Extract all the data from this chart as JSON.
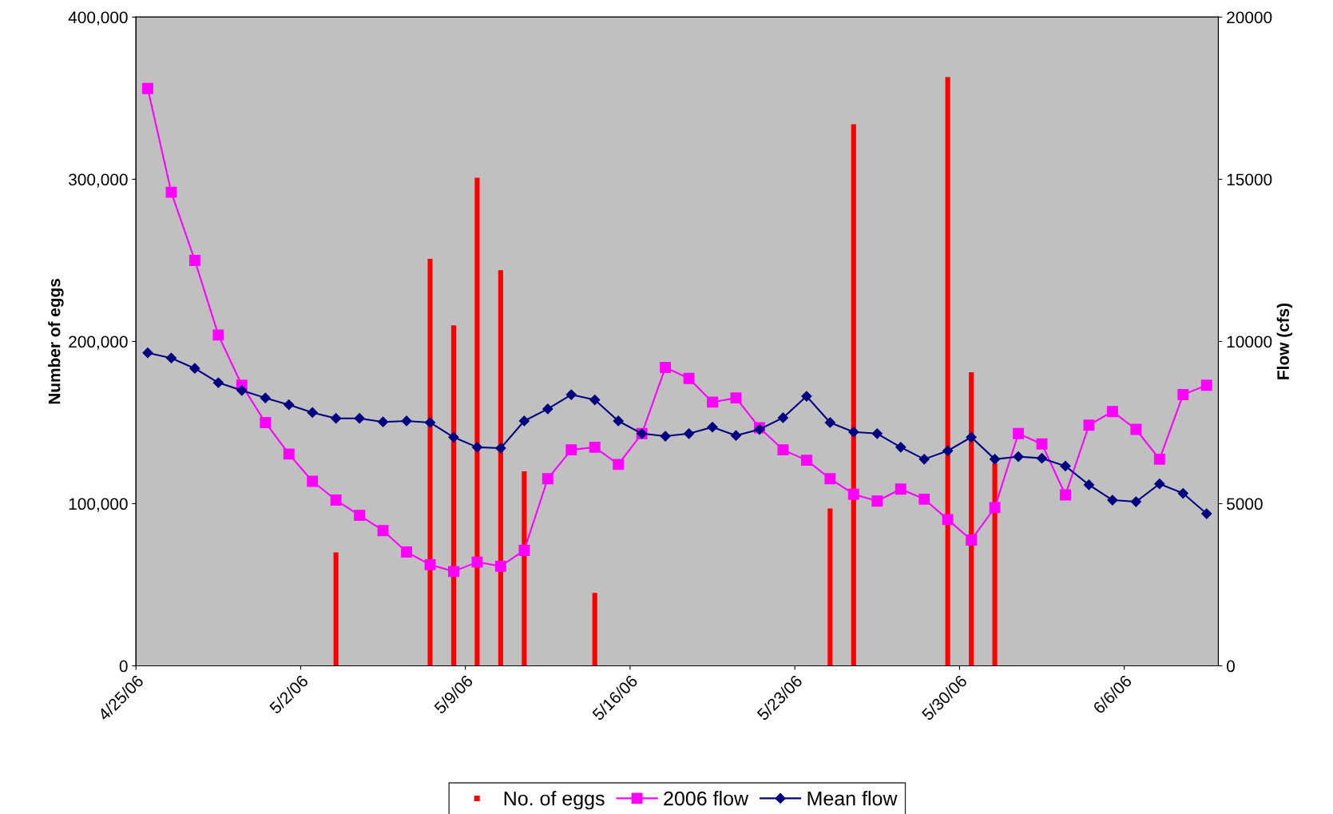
{
  "chart_data": {
    "type": "bar",
    "ylabel": "Number of eggs",
    "y2label": "Flow (cfs)",
    "x": [
      "2006-04-25T12:00",
      "2006-04-26T12:00",
      "2006-04-27T12:00",
      "2006-04-28T12:00",
      "2006-04-29T12:00",
      "2006-04-30T12:00",
      "2006-05-01T12:00",
      "2006-05-02T12:00",
      "2006-05-03T12:00",
      "2006-05-04T12:00",
      "2006-05-05T12:00",
      "2006-05-06T12:00",
      "2006-05-07T12:00",
      "2006-05-08T12:00",
      "2006-05-09T12:00",
      "2006-05-10T12:00",
      "2006-05-11T12:00",
      "2006-05-12T12:00",
      "2006-05-13T12:00",
      "2006-05-14T12:00",
      "2006-05-15T12:00",
      "2006-05-16T12:00",
      "2006-05-17T12:00",
      "2006-05-18T12:00",
      "2006-05-19T12:00",
      "2006-05-20T12:00",
      "2006-05-21T12:00",
      "2006-05-22T12:00",
      "2006-05-23T12:00",
      "2006-05-24T12:00",
      "2006-05-25T12:00",
      "2006-05-26T12:00",
      "2006-05-27T12:00",
      "2006-05-28T12:00",
      "2006-05-29T12:00",
      "2006-05-30T12:00",
      "2006-05-31T12:00",
      "2006-06-01T12:00",
      "2006-06-02T12:00",
      "2006-06-03T12:00",
      "2006-06-04T12:00",
      "2006-06-05T12:00",
      "2006-06-06T12:00",
      "2006-06-07T12:00",
      "2006-06-08T12:00",
      "2006-06-09T12:00"
    ],
    "series": [
      {
        "name": "No. of eggs",
        "color": "#ff0000",
        "values": [
          null,
          null,
          null,
          null,
          null,
          null,
          null,
          null,
          70000,
          null,
          null,
          null,
          251000,
          210000,
          301000,
          244000,
          120000,
          null,
          null,
          45000,
          null,
          null,
          null,
          null,
          null,
          null,
          null,
          null,
          null,
          97000,
          334000,
          null,
          null,
          null,
          363000,
          181000,
          125000,
          null,
          null,
          null,
          null,
          null,
          null,
          null,
          null,
          null
        ]
      },
      {
        "name": "2006 flow",
        "type": "line",
        "axis": "y2",
        "color": "#ff00ff",
        "marker": "square",
        "values": [
          17800,
          14600,
          12500,
          10200,
          8650,
          7500,
          6530,
          5690,
          5110,
          4640,
          4170,
          3510,
          3120,
          2910,
          3200,
          3070,
          3560,
          5770,
          6660,
          6740,
          6210,
          7160,
          9200,
          8860,
          8130,
          8260,
          7340,
          6660,
          6340,
          5770,
          5290,
          5080,
          5450,
          5140,
          4510,
          3880,
          4880,
          7160,
          6840,
          5270,
          7420,
          7840,
          7290,
          6370,
          8360,
          8650
        ]
      },
      {
        "name": "Mean flow",
        "type": "line",
        "axis": "y2",
        "color": "#000080",
        "marker": "diamond",
        "values": [
          9650,
          9490,
          9170,
          8730,
          8490,
          8260,
          8050,
          7810,
          7630,
          7630,
          7520,
          7550,
          7500,
          7050,
          6740,
          6710,
          7550,
          7920,
          8360,
          8200,
          7550,
          7160,
          7080,
          7160,
          7360,
          7100,
          7290,
          7650,
          8310,
          7500,
          7210,
          7160,
          6740,
          6370,
          6630,
          7050,
          6370,
          6450,
          6400,
          6160,
          5580,
          5110,
          5060,
          5610,
          5320,
          4690
        ]
      }
    ],
    "xlim": [
      "2006-04-25",
      "2006-06-10"
    ],
    "xticks": [
      {
        "value": "2006-04-25",
        "label": "4/25/06"
      },
      {
        "value": "2006-05-02",
        "label": "5/2/06"
      },
      {
        "value": "2006-05-09",
        "label": "5/9/06"
      },
      {
        "value": "2006-05-16",
        "label": "5/16/06"
      },
      {
        "value": "2006-05-23",
        "label": "5/23/06"
      },
      {
        "value": "2006-05-30",
        "label": "5/30/06"
      },
      {
        "value": "2006-06-06",
        "label": "6/6/06"
      }
    ],
    "ylim": [
      0,
      400000
    ],
    "yticks": [
      0,
      {
        "value": 100000,
        "label": "100,000"
      },
      {
        "value": 200000,
        "label": "200,000"
      },
      {
        "value": 300000,
        "label": "300,000"
      },
      {
        "value": 400000,
        "label": "400,000"
      }
    ],
    "y2lim": [
      0,
      20000
    ],
    "y2ticks": [
      0,
      5000,
      10000,
      15000,
      20000
    ],
    "grid": false,
    "legend": "bottom"
  }
}
